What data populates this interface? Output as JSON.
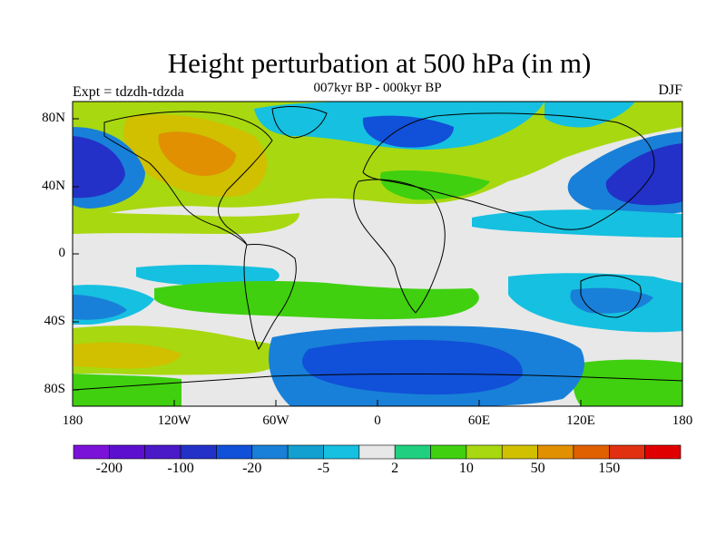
{
  "title": "Height perturbation at 500 hPa (in m)",
  "subtitle": "007kyr BP - 000kyr BP",
  "experiment_label": "Expt = tdzdh-tdzda",
  "season": "DJF",
  "lat_ticks": [
    "80N",
    "40N",
    "0",
    "40S",
    "80S"
  ],
  "lon_ticks": [
    "180",
    "120W",
    "60W",
    "0",
    "60E",
    "120E",
    "180"
  ],
  "colorbar": {
    "colors": [
      "#7a12d8",
      "#5d0fd0",
      "#4a19c8",
      "#2331c8",
      "#1150d8",
      "#1880d8",
      "#11a0d0",
      "#16c0e0",
      "#e8e8e8",
      "#20d080",
      "#40d010",
      "#a8d810",
      "#d0c000",
      "#e09000",
      "#e06000",
      "#e03010",
      "#e00000"
    ],
    "labels": [
      {
        "text": "-200",
        "boundary": 1
      },
      {
        "text": "-100",
        "boundary": 3
      },
      {
        "text": "-20",
        "boundary": 5
      },
      {
        "text": "-5",
        "boundary": 7
      },
      {
        "text": "2",
        "boundary": 9
      },
      {
        "text": "10",
        "boundary": 11
      },
      {
        "text": "50",
        "boundary": 13
      },
      {
        "text": "150",
        "boundary": 15
      }
    ]
  }
}
